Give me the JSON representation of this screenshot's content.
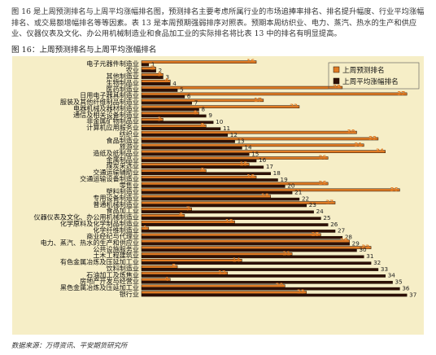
{
  "intro_text": "图 16 是上周预测排名与上周平均涨幅排名图，预测排名主要考虑所属行业的市场追捧率排名、排名提升幅度、行业平均涨幅排名、或交易额增幅排名等等因素。表 13 是本周预期强弱排序对照表。预期本周纺织业、电力、蒸汽、热水的生产和供应业、仪器仪表及文化、办公用机械制造业和食品加工业的实际排名将比表 13 中的排名有明显提高。",
  "figure_title": "图 16：上周预测排名与上周平均涨幅排名",
  "source_text": "数据来源：万得资讯、平安期货研究所",
  "colors": {
    "panel_bg": "#f6eec7",
    "predicted_bar": "#e07b24",
    "avg_bar": "#2f1005",
    "bar_outline": "#1a0d05",
    "predicted_label": "#e07b24",
    "avg_label": "#222222"
  },
  "chart_data": {
    "type": "bar",
    "orientation": "horizontal",
    "categories": [
      "电子元器件制造业",
      "农业",
      "其他制造业",
      "生物制品业",
      "医药制造业",
      "日用电子器具制造业",
      "服装及其他纤维制品制造业",
      "电器机械及器材制造业",
      "通信及相关设备制造业",
      "非金属矿物制品业",
      "计算机应用服务业",
      "纺织业",
      "食品制造业",
      "旅游业",
      "造纸及纸制品业",
      "金属制品业",
      "煤炭采选业",
      "交通运输辅助业",
      "交通运输设备制造业",
      "零售业",
      "塑料制造业",
      "专用设备制造业",
      "普通机械制造业",
      "食品加工业",
      "仪器仪表及文化、办公用机械制造业",
      "化学原料及化学制品制造业",
      "化学纤维制造业",
      "商业经纪与代理业",
      "电力、蒸汽、热水的生产和供应业",
      "公共设施服务业",
      "土木工程建筑业",
      "有色金属冶炼及压延加工业",
      "饮料制造业",
      "石油加工及炼焦业",
      "房地产开发与经营业",
      "黑色金属冶炼及压延加工业",
      "银行业"
    ],
    "series": [
      {
        "name": "上周预测排名",
        "values": [
          16,
          2,
          3,
          4,
          28,
          37,
          17,
          22,
          8,
          3,
          9,
          30,
          33,
          31,
          34,
          26,
          15,
          9,
          16,
          26,
          36,
          18,
          27,
          7,
          6,
          13,
          1,
          25,
          29,
          32,
          21,
          14,
          5,
          12,
          4,
          20,
          23
        ]
      },
      {
        "name": "上周平均涨幅排名",
        "values": [
          1,
          2,
          3,
          4,
          5,
          6,
          7,
          8,
          9,
          10,
          11,
          12,
          13,
          14,
          15,
          16,
          17,
          18,
          19,
          20,
          21,
          22,
          23,
          24,
          25,
          26,
          27,
          28,
          29,
          30,
          31,
          32,
          33,
          34,
          35,
          36,
          37
        ]
      }
    ],
    "legend_position": "top-right",
    "xlim": [
      0,
      38
    ],
    "grid": false
  }
}
